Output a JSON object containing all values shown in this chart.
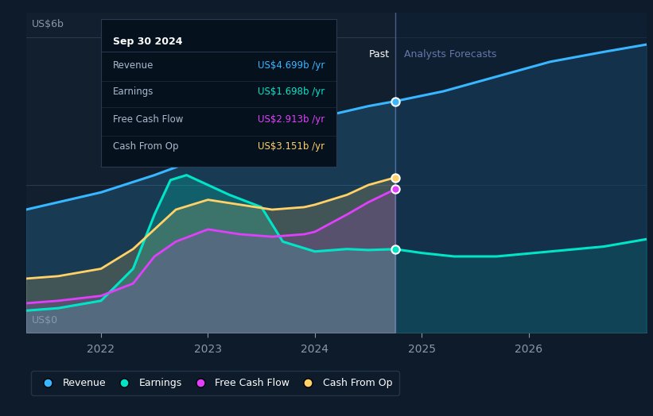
{
  "bg_color": "#0d1b2a",
  "plot_bg_color": "#111f2e",
  "divider_x": 2024.75,
  "ylabel_top": "US$6b",
  "ylabel_bottom": "US$0",
  "x_ticks": [
    2022,
    2023,
    2024,
    2025,
    2026
  ],
  "xlim": [
    2021.3,
    2027.1
  ],
  "ylim": [
    0,
    6.5
  ],
  "past_label": "Past",
  "forecast_label": "Analysts Forecasts",
  "tooltip": {
    "date": "Sep 30 2024",
    "rows": [
      {
        "label": "Revenue",
        "value": "US$4.699b /yr",
        "label_color": "#aabbcc",
        "value_color": "#38b6ff"
      },
      {
        "label": "Earnings",
        "value": "US$1.698b /yr",
        "label_color": "#aabbcc",
        "value_color": "#00e5c8"
      },
      {
        "label": "Free Cash Flow",
        "value": "US$2.913b /yr",
        "label_color": "#aabbcc",
        "value_color": "#e040fb"
      },
      {
        "label": "Cash From Op",
        "value": "US$3.151b /yr",
        "label_color": "#aabbcc",
        "value_color": "#ffd166"
      }
    ]
  },
  "legend": [
    {
      "label": "Revenue",
      "color": "#38b6ff"
    },
    {
      "label": "Earnings",
      "color": "#00e5c8"
    },
    {
      "label": "Free Cash Flow",
      "color": "#e040fb"
    },
    {
      "label": "Cash From Op",
      "color": "#ffd166"
    }
  ],
  "revenue": {
    "x_past": [
      2021.3,
      2021.6,
      2022.0,
      2022.5,
      2023.0,
      2023.5,
      2024.0,
      2024.5,
      2024.75
    ],
    "y_past": [
      2.5,
      2.65,
      2.85,
      3.2,
      3.6,
      4.0,
      4.35,
      4.6,
      4.699
    ],
    "x_future": [
      2024.75,
      2025.2,
      2025.7,
      2026.2,
      2026.7,
      2027.1
    ],
    "y_future": [
      4.699,
      4.9,
      5.2,
      5.5,
      5.7,
      5.85
    ],
    "color": "#38b6ff"
  },
  "earnings": {
    "x_past": [
      2021.3,
      2021.6,
      2022.0,
      2022.3,
      2022.5,
      2022.65,
      2022.8,
      2023.0,
      2023.2,
      2023.5,
      2023.7,
      2024.0,
      2024.3,
      2024.5,
      2024.75
    ],
    "y_past": [
      0.45,
      0.5,
      0.65,
      1.3,
      2.4,
      3.1,
      3.2,
      3.0,
      2.8,
      2.55,
      1.85,
      1.65,
      1.7,
      1.68,
      1.698
    ],
    "x_future": [
      2024.75,
      2025.0,
      2025.3,
      2025.7,
      2026.2,
      2026.7,
      2027.1
    ],
    "y_future": [
      1.698,
      1.62,
      1.55,
      1.55,
      1.65,
      1.75,
      1.9
    ],
    "color": "#00e5c8"
  },
  "free_cash_flow": {
    "x_past": [
      2021.3,
      2021.6,
      2022.0,
      2022.3,
      2022.5,
      2022.7,
      2023.0,
      2023.3,
      2023.6,
      2023.9,
      2024.0,
      2024.3,
      2024.5,
      2024.75
    ],
    "y_past": [
      0.6,
      0.65,
      0.75,
      1.0,
      1.55,
      1.85,
      2.1,
      2.0,
      1.95,
      2.0,
      2.05,
      2.4,
      2.65,
      2.913
    ],
    "color": "#e040fb"
  },
  "cash_from_op": {
    "x_past": [
      2021.3,
      2021.6,
      2022.0,
      2022.3,
      2022.5,
      2022.7,
      2023.0,
      2023.3,
      2023.6,
      2023.9,
      2024.0,
      2024.3,
      2024.5,
      2024.75
    ],
    "y_past": [
      1.1,
      1.15,
      1.3,
      1.7,
      2.1,
      2.5,
      2.7,
      2.6,
      2.5,
      2.55,
      2.6,
      2.8,
      3.0,
      3.151
    ],
    "color": "#ffd166"
  },
  "dot_values": {
    "revenue_dot": 4.699,
    "earnings_dot": 1.698,
    "fcf_dot": 2.913,
    "cfo_dot": 3.151
  },
  "grid_lines": [
    3.0,
    6.0
  ],
  "forecast_bg_color": "#0d2035"
}
